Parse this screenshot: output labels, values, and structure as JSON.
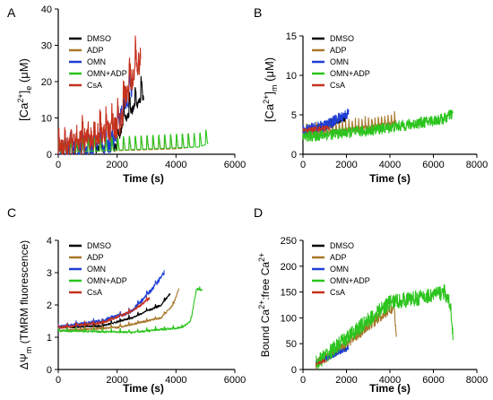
{
  "colors": {
    "DMSO": "#000000",
    "ADP": "#a8772b",
    "OMN": "#1f3fd6",
    "OMN+ADP": "#2cc41e",
    "CsA": "#c4321e"
  },
  "chart_data": [
    {
      "id": "A",
      "type": "line",
      "panel_label": "A",
      "xlabel": "Time (s)",
      "ylabel_parts": [
        "[Ca",
        "2+",
        "]",
        "e",
        " (μM)"
      ],
      "xlim": [
        0,
        6000
      ],
      "ylim": [
        0,
        40
      ],
      "xticks": [
        0,
        2000,
        4000,
        6000
      ],
      "yticks": [
        0,
        10,
        20,
        30,
        40
      ],
      "legend": [
        "DMSO",
        "ADP",
        "OMN",
        "OMN+ADP",
        "CsA"
      ],
      "series": [
        {
          "name": "DMSO",
          "pulse_mode": "sawtooth",
          "t_end": 2900,
          "noise": 1.2,
          "points": [
            [
              0,
              0.5
            ],
            [
              2000,
              2
            ],
            [
              2200,
              9
            ],
            [
              2500,
              12
            ],
            [
              2700,
              14
            ],
            [
              2900,
              16
            ]
          ]
        },
        {
          "name": "ADP",
          "pulse_mode": "sawtooth",
          "t_end": 4600,
          "noise": 0,
          "points": [
            [
              0,
              0.5
            ],
            [
              4000,
              1.5
            ],
            [
              4600,
              2
            ]
          ]
        },
        {
          "name": "OMN",
          "pulse_mode": "sawtooth",
          "t_end": 2500,
          "noise": 2.5,
          "points": [
            [
              0,
              0.5
            ],
            [
              1900,
              3
            ],
            [
              2100,
              10
            ],
            [
              2300,
              14
            ],
            [
              2500,
              18
            ]
          ]
        },
        {
          "name": "OMN+ADP",
          "pulse_mode": "sawtooth",
          "t_end": 5100,
          "noise": 0,
          "points": [
            [
              0,
              0.5
            ],
            [
              4800,
              2
            ],
            [
              5100,
              3
            ]
          ]
        },
        {
          "name": "CsA",
          "pulse_mode": "sawtooth",
          "t_end": 2800,
          "noise": 3.5,
          "points": [
            [
              0,
              0.5
            ],
            [
              2100,
              8
            ],
            [
              2300,
              16
            ],
            [
              2600,
              22
            ],
            [
              2800,
              26
            ]
          ]
        }
      ]
    },
    {
      "id": "B",
      "type": "line",
      "panel_label": "B",
      "xlabel": "Time (s)",
      "ylabel_parts": [
        "[Ca",
        "2+",
        "]",
        "m",
        " (μM)"
      ],
      "xlim": [
        0,
        8000
      ],
      "ylim": [
        0,
        15
      ],
      "xticks": [
        0,
        2000,
        4000,
        6000,
        8000
      ],
      "yticks": [
        0,
        5,
        10,
        15
      ],
      "legend": [
        "DMSO",
        "ADP",
        "OMN",
        "OMN+ADP",
        "CsA"
      ],
      "series": [
        {
          "name": "DMSO",
          "pulse_mode": "noisy",
          "t_end": 2000,
          "noise": 0.6,
          "points": [
            [
              0,
              2.8
            ],
            [
              1000,
              3.5
            ],
            [
              2000,
              4.8
            ]
          ]
        },
        {
          "name": "ADP",
          "pulse_mode": "sawtooth",
          "t_end": 4300,
          "noise": 0.3,
          "points": [
            [
              0,
              2.5
            ],
            [
              2000,
              3
            ],
            [
              3500,
              3.6
            ],
            [
              4300,
              4
            ]
          ]
        },
        {
          "name": "OMN",
          "pulse_mode": "noisy",
          "t_end": 2100,
          "noise": 0.7,
          "points": [
            [
              0,
              3
            ],
            [
              1000,
              3.6
            ],
            [
              2100,
              5.2
            ]
          ]
        },
        {
          "name": "OMN+ADP",
          "pulse_mode": "noisy",
          "t_end": 6900,
          "noise": 0.7,
          "points": [
            [
              0,
              2.2
            ],
            [
              3000,
              3
            ],
            [
              5000,
              3.8
            ],
            [
              6500,
              4.5
            ],
            [
              6900,
              5.2
            ]
          ]
        },
        {
          "name": "CsA",
          "pulse_mode": "noisy",
          "t_end": 1200,
          "noise": 0.3,
          "points": [
            [
              0,
              3
            ],
            [
              1200,
              3.4
            ]
          ]
        }
      ]
    },
    {
      "id": "C",
      "type": "line",
      "panel_label": "C",
      "xlabel": "Time (s)",
      "ylabel_parts": [
        "ΔΨ",
        "",
        "",
        "m",
        " (TMRM fluorescence)"
      ],
      "xlim": [
        0,
        6000
      ],
      "ylim": [
        0,
        4
      ],
      "xticks": [
        0,
        2000,
        4000,
        6000
      ],
      "yticks": [
        0,
        1,
        2,
        3,
        4
      ],
      "legend": [
        "DMSO",
        "ADP",
        "OMN",
        "OMN+ADP",
        "CsA"
      ],
      "series": [
        {
          "name": "DMSO",
          "pulse_mode": "step",
          "t_end": 3800,
          "noise": 0.03,
          "points": [
            [
              0,
              1.3
            ],
            [
              1500,
              1.35
            ],
            [
              2500,
              1.6
            ],
            [
              3500,
              2.0
            ],
            [
              3800,
              2.35
            ]
          ]
        },
        {
          "name": "ADP",
          "pulse_mode": "step",
          "t_end": 4100,
          "noise": 0.03,
          "points": [
            [
              0,
              1.2
            ],
            [
              2000,
              1.3
            ],
            [
              3500,
              1.6
            ],
            [
              3900,
              2.0
            ],
            [
              4100,
              2.5
            ]
          ]
        },
        {
          "name": "OMN",
          "pulse_mode": "step",
          "t_end": 3600,
          "noise": 0.06,
          "points": [
            [
              0,
              1.3
            ],
            [
              1500,
              1.5
            ],
            [
              2500,
              1.8
            ],
            [
              3200,
              2.5
            ],
            [
              3600,
              3.0
            ]
          ]
        },
        {
          "name": "OMN+ADP",
          "pulse_mode": "step",
          "t_end": 4900,
          "noise": 0.03,
          "points": [
            [
              0,
              1.2
            ],
            [
              2500,
              1.15
            ],
            [
              4200,
              1.3
            ],
            [
              4500,
              1.5
            ],
            [
              4700,
              2.5
            ],
            [
              4900,
              2.45
            ]
          ]
        },
        {
          "name": "CsA",
          "pulse_mode": "step",
          "t_end": 3100,
          "noise": 0.04,
          "points": [
            [
              0,
              1.3
            ],
            [
              1500,
              1.45
            ],
            [
              2500,
              1.8
            ],
            [
              3100,
              2.2
            ]
          ]
        }
      ]
    },
    {
      "id": "D",
      "type": "line",
      "panel_label": "D",
      "xlabel": "Time (s)",
      "ylabel_parts": [
        "Bound Ca",
        "2+",
        ":free Ca",
        "",
        "2+"
      ],
      "xlim": [
        0,
        8000
      ],
      "ylim": [
        0,
        250
      ],
      "xticks": [
        0,
        2000,
        4000,
        6000,
        8000
      ],
      "yticks": [
        0,
        50,
        100,
        150,
        200,
        250
      ],
      "legend": [
        "DMSO",
        "ADP",
        "OMN",
        "OMN+ADP",
        "CsA"
      ],
      "series": [
        {
          "name": "DMSO",
          "pulse_mode": "noisy",
          "t_end": 2000,
          "noise": 4,
          "points": [
            [
              600,
              10
            ],
            [
              1200,
              25
            ],
            [
              2000,
              40
            ]
          ]
        },
        {
          "name": "ADP",
          "pulse_mode": "noisy",
          "t_end": 4300,
          "noise": 10,
          "points": [
            [
              600,
              10
            ],
            [
              2000,
              50
            ],
            [
              3500,
              100
            ],
            [
              4200,
              120
            ],
            [
              4300,
              60
            ]
          ]
        },
        {
          "name": "OMN",
          "pulse_mode": "noisy",
          "t_end": 2100,
          "noise": 5,
          "points": [
            [
              600,
              12
            ],
            [
              1500,
              30
            ],
            [
              2100,
              42
            ]
          ]
        },
        {
          "name": "OMN+ADP",
          "pulse_mode": "noisy",
          "t_end": 6900,
          "noise": 15,
          "points": [
            [
              600,
              12
            ],
            [
              2000,
              60
            ],
            [
              4000,
              130
            ],
            [
              5500,
              140
            ],
            [
              6500,
              150
            ],
            [
              6800,
              120
            ],
            [
              6900,
              70
            ]
          ]
        },
        {
          "name": "CsA",
          "pulse_mode": "noisy",
          "t_end": 1000,
          "noise": 3,
          "points": [
            [
              600,
              10
            ],
            [
              1000,
              18
            ]
          ]
        }
      ]
    }
  ]
}
